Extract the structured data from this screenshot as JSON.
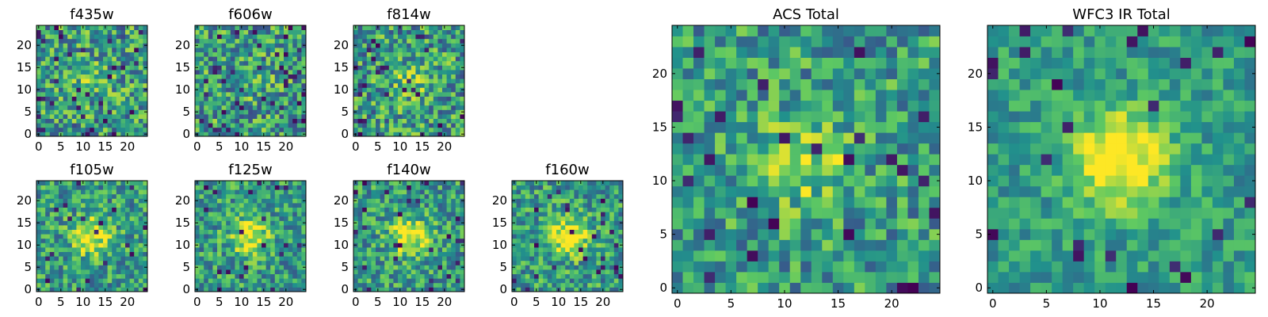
{
  "chart_data": [
    {
      "type": "heatmap",
      "title": "f435w",
      "xticks": [
        0,
        5,
        10,
        15,
        20
      ],
      "yticks": [
        0,
        5,
        10,
        15,
        20
      ],
      "xlim": [
        0,
        25
      ],
      "ylim": [
        0,
        25
      ],
      "grid": false,
      "seed": 11,
      "blob": 0.15,
      "noise": 0.55,
      "dark": 0.05
    },
    {
      "type": "heatmap",
      "title": "f606w",
      "xticks": [
        0,
        5,
        10,
        15,
        20
      ],
      "yticks": [
        0,
        5,
        10,
        15,
        20
      ],
      "xlim": [
        0,
        25
      ],
      "ylim": [
        0,
        25
      ],
      "grid": false,
      "seed": 23,
      "blob": 0.1,
      "noise": 0.55,
      "dark": 0.06
    },
    {
      "type": "heatmap",
      "title": "f814w",
      "xticks": [
        0,
        5,
        10,
        15,
        20
      ],
      "yticks": [
        0,
        5,
        10,
        15,
        20
      ],
      "xlim": [
        0,
        25
      ],
      "ylim": [
        0,
        25
      ],
      "grid": false,
      "seed": 37,
      "blob": 0.2,
      "noise": 0.55,
      "dark": 0.05
    },
    {
      "type": "heatmap",
      "title": "f105w",
      "xticks": [
        0,
        5,
        10,
        15,
        20
      ],
      "yticks": [
        0,
        5,
        10,
        15,
        20
      ],
      "xlim": [
        0,
        25
      ],
      "ylim": [
        0,
        25
      ],
      "grid": false,
      "seed": 41,
      "blob": 0.45,
      "noise": 0.45,
      "dark": 0.04
    },
    {
      "type": "heatmap",
      "title": "f125w",
      "xticks": [
        0,
        5,
        10,
        15,
        20
      ],
      "yticks": [
        0,
        5,
        10,
        15,
        20
      ],
      "xlim": [
        0,
        25
      ],
      "ylim": [
        0,
        25
      ],
      "grid": false,
      "seed": 53,
      "blob": 0.45,
      "noise": 0.45,
      "dark": 0.04
    },
    {
      "type": "heatmap",
      "title": "f140w",
      "xticks": [
        0,
        5,
        10,
        15,
        20
      ],
      "yticks": [
        0,
        5,
        10,
        15,
        20
      ],
      "xlim": [
        0,
        25
      ],
      "ylim": [
        0,
        25
      ],
      "grid": false,
      "seed": 67,
      "blob": 0.5,
      "noise": 0.45,
      "dark": 0.04
    },
    {
      "type": "heatmap",
      "title": "f160w",
      "xticks": [
        0,
        5,
        10,
        15,
        20
      ],
      "yticks": [
        0,
        5,
        10,
        15,
        20
      ],
      "xlim": [
        0,
        25
      ],
      "ylim": [
        0,
        25
      ],
      "grid": false,
      "seed": 79,
      "blob": 0.5,
      "noise": 0.45,
      "dark": 0.04
    },
    {
      "type": "heatmap",
      "title": "ACS Total",
      "xticks": [
        0,
        5,
        10,
        15,
        20
      ],
      "yticks": [
        0,
        5,
        10,
        15,
        20
      ],
      "xlim": [
        0,
        25
      ],
      "ylim": [
        0,
        25
      ],
      "grid": false,
      "seed": 83,
      "blob": 0.3,
      "noise": 0.45,
      "dark": 0.05
    },
    {
      "type": "heatmap",
      "title": "WFC3 IR Total",
      "xticks": [
        0,
        5,
        10,
        15,
        20
      ],
      "yticks": [
        0,
        5,
        10,
        15,
        20
      ],
      "xlim": [
        0,
        25
      ],
      "ylim": [
        0,
        25
      ],
      "grid": false,
      "seed": 97,
      "blob": 0.6,
      "noise": 0.3,
      "dark": 0.04
    }
  ],
  "colormap": [
    "#440154",
    "#3b528b",
    "#21918c",
    "#5ec962",
    "#fde725"
  ]
}
